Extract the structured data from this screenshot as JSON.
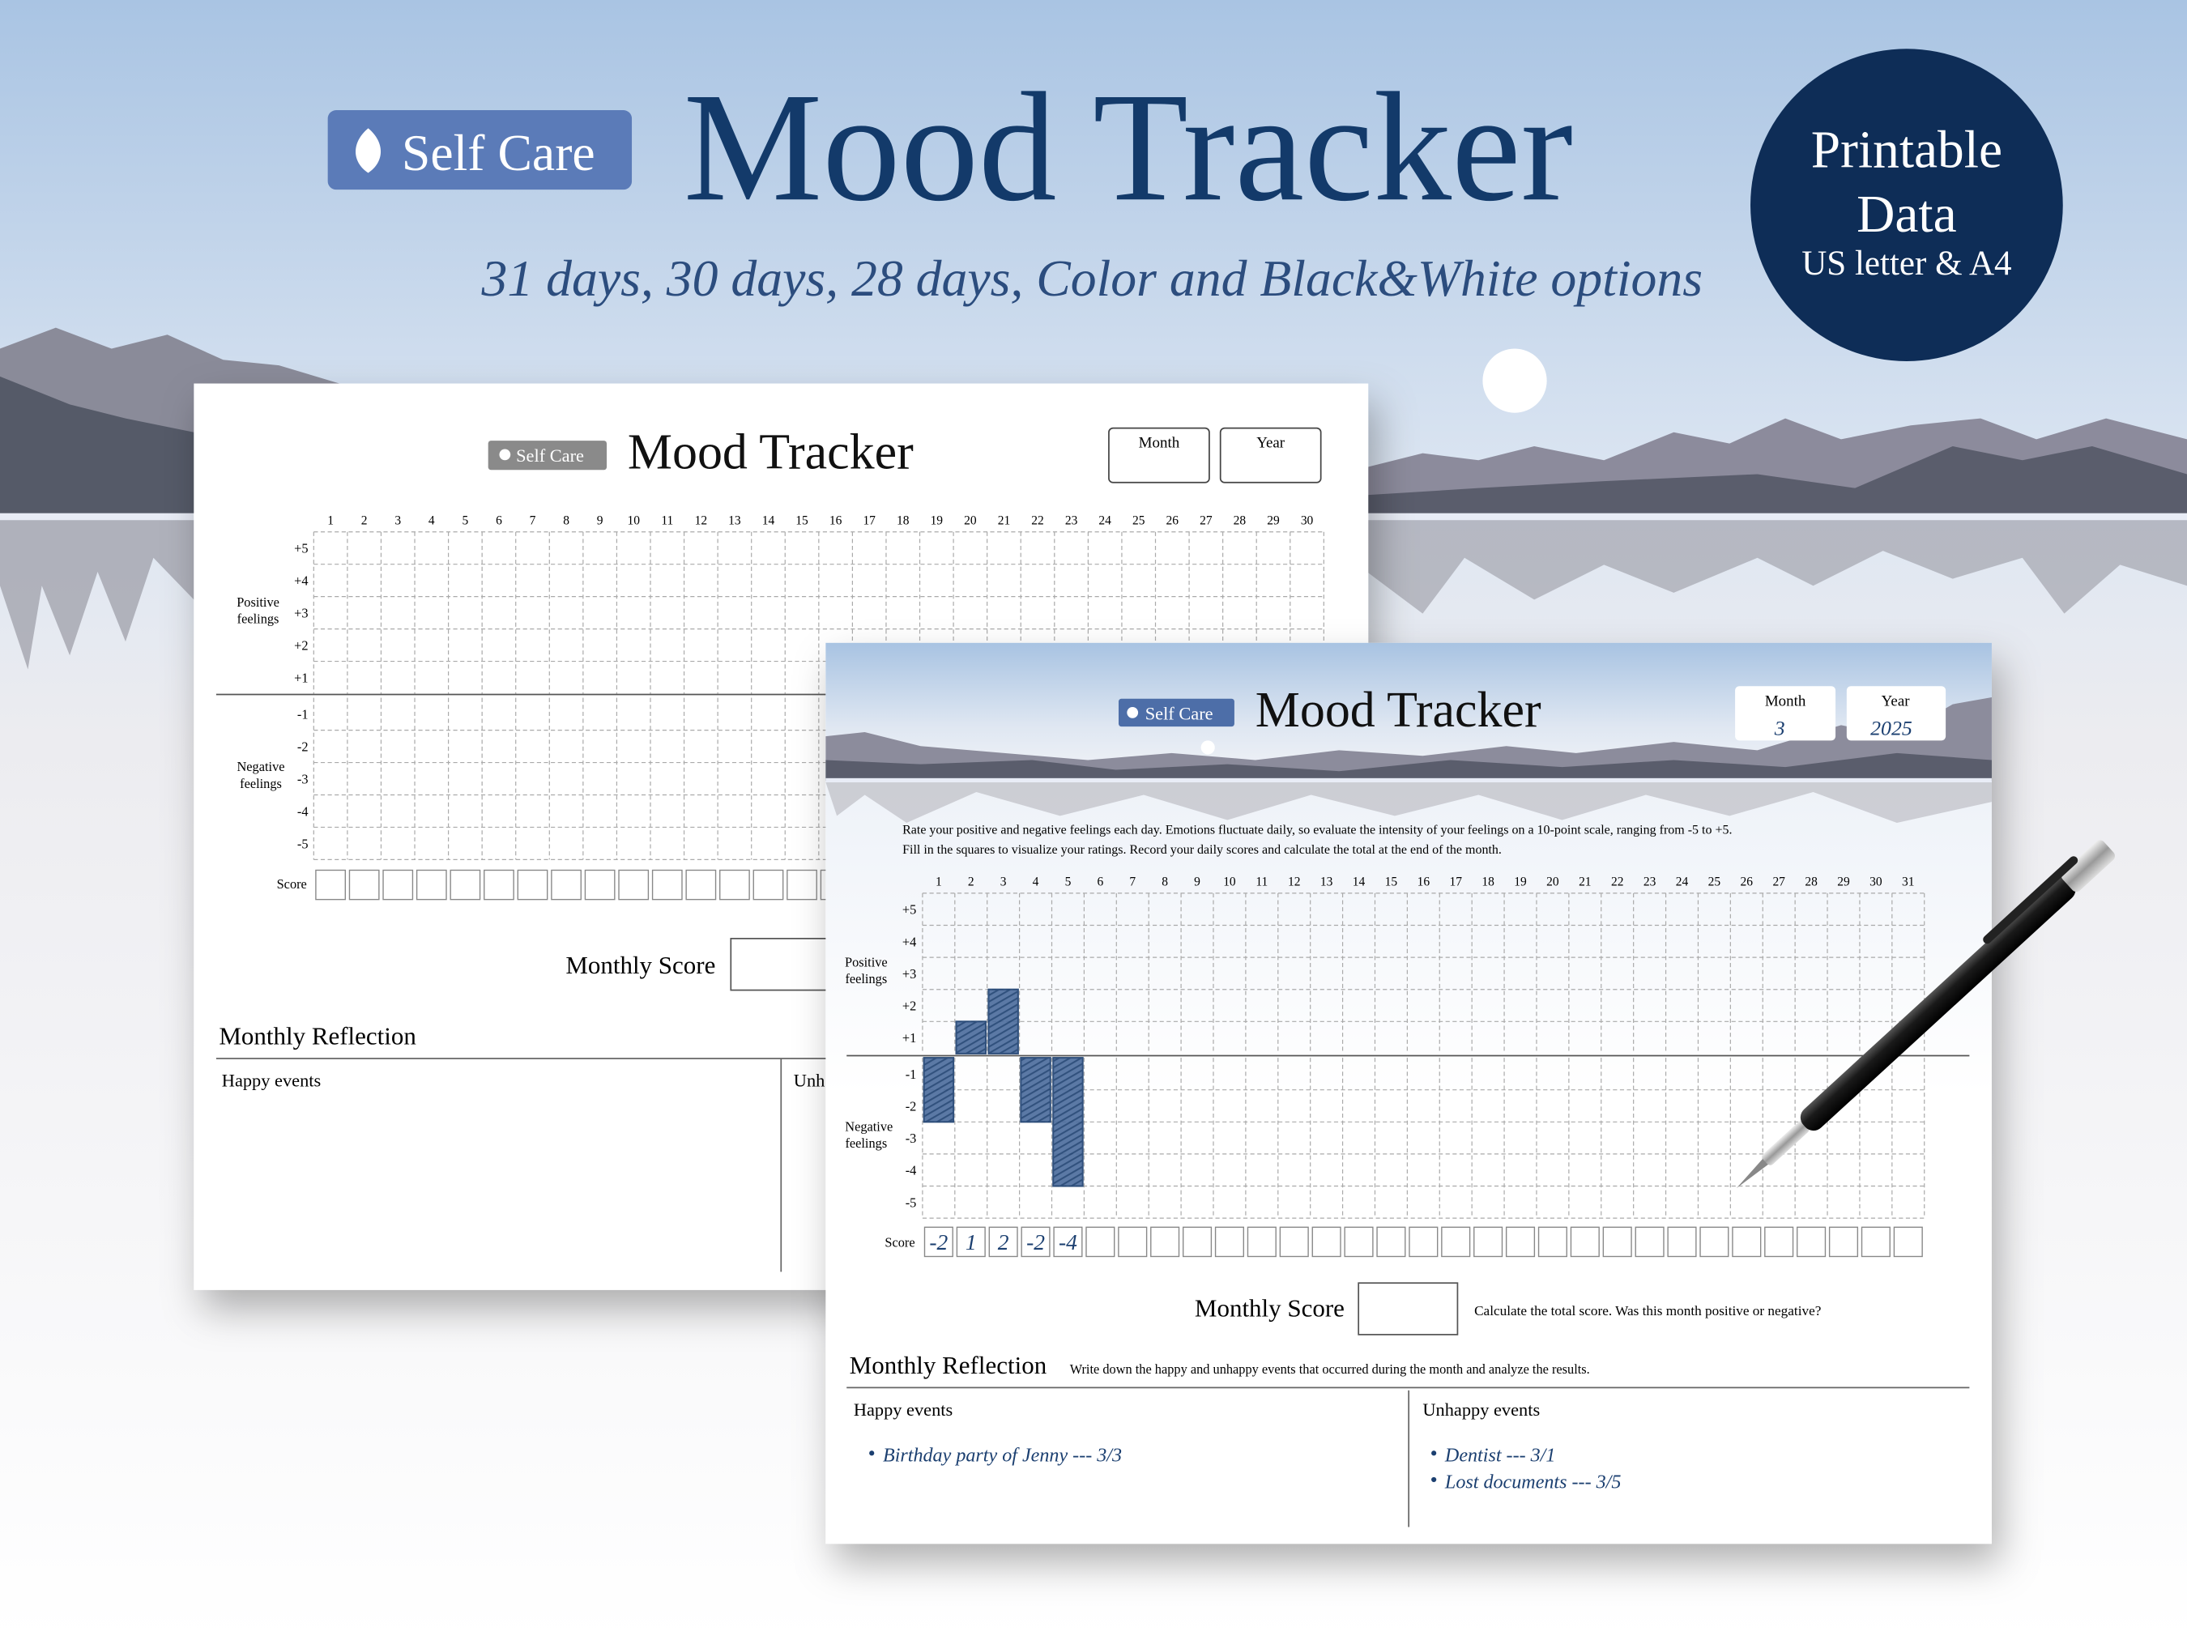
{
  "header": {
    "badge": "Self Care",
    "title": "Mood Tracker",
    "subtitle": "31 days, 30 days, 28 days, Color and Black&White options",
    "circle": [
      "Printable",
      "Data",
      "US letter & A4"
    ]
  },
  "back_sheet": {
    "badge": "Self Care",
    "title": "Mood Tracker",
    "month_label": "Month",
    "year_label": "Year",
    "days": [
      1,
      2,
      3,
      4,
      5,
      6,
      7,
      8,
      9,
      10,
      11,
      12,
      13,
      14,
      15,
      16,
      17,
      18,
      19,
      20,
      21,
      22,
      23,
      24,
      25,
      26,
      27,
      28,
      29,
      30
    ],
    "positive_rows": [
      "+5",
      "+4",
      "+3",
      "+2",
      "+1"
    ],
    "negative_rows": [
      "-1",
      "-2",
      "-3",
      "-4",
      "-5"
    ],
    "positive_label": [
      "Positive",
      "feelings"
    ],
    "negative_label": [
      "Negative",
      "feelings"
    ],
    "score_label": "Score",
    "monthly_score": "Monthly Score",
    "reflection_title": "Monthly Reflection",
    "happy_title": "Happy events",
    "unhappy_title": "Unh"
  },
  "front_sheet": {
    "badge": "Self Care",
    "title": "Mood Tracker",
    "month_label": "Month",
    "month": 3,
    "year_label": "Year",
    "year": 2025,
    "instructions": [
      "Rate your positive and negative feelings each day. Emotions fluctuate daily, so evaluate the intensity of your feelings on a 10-point scale, ranging from -5 to +5.",
      "Fill in the squares to visualize your ratings. Record your daily scores and calculate the total at the end of the month."
    ],
    "days": [
      1,
      2,
      3,
      4,
      5,
      6,
      7,
      8,
      9,
      10,
      11,
      12,
      13,
      14,
      15,
      16,
      17,
      18,
      19,
      20,
      21,
      22,
      23,
      24,
      25,
      26,
      27,
      28,
      29,
      30,
      31
    ],
    "positive_rows": [
      "+5",
      "+4",
      "+3",
      "+2",
      "+1"
    ],
    "negative_rows": [
      "-1",
      "-2",
      "-3",
      "-4",
      "-5"
    ],
    "positive_label": [
      "Positive",
      "feelings"
    ],
    "negative_label": [
      "Negative",
      "feelings"
    ],
    "score_label": "Score",
    "scores": [
      -2,
      1,
      2,
      -2,
      -4
    ],
    "monthly_score": "Monthly Score",
    "monthly_score_note": "Calculate the total score. Was this month positive or negative?",
    "reflection_title": "Monthly Reflection",
    "reflection_note": "Write down the happy and unhappy events that occurred during the month and analyze the results.",
    "happy_title": "Happy events",
    "happy_events": [
      "Birthday party of Jenny --- 3/3"
    ],
    "unhappy_title": "Unhappy events",
    "unhappy_events": [
      "Dentist --- 3/1",
      "Lost documents --- 3/5"
    ]
  }
}
